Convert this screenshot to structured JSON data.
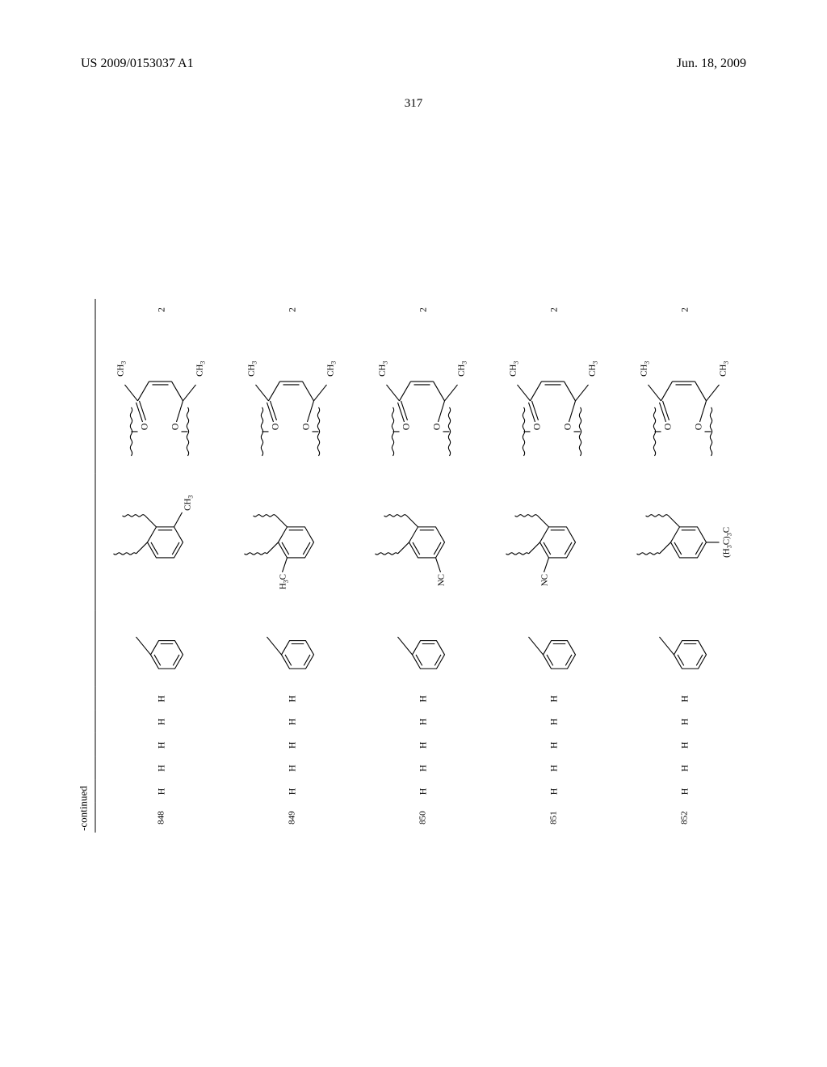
{
  "header": {
    "patent_number": "US 2009/0153037 A1",
    "date": "Jun. 18, 2009"
  },
  "page_number": "317",
  "continued_label": "-continued",
  "rows": [
    {
      "no": "848",
      "h": [
        "H",
        "H",
        "H",
        "H",
        "H"
      ],
      "struct2_sub": "CH3",
      "struct2_sub_pos": "ortho_right",
      "n": "2"
    },
    {
      "no": "849",
      "h": [
        "H",
        "H",
        "H",
        "H",
        "H"
      ],
      "struct2_sub": "H3C",
      "struct2_sub_pos": "ortho_left",
      "n": "2"
    },
    {
      "no": "850",
      "h": [
        "H",
        "H",
        "H",
        "H",
        "H"
      ],
      "struct2_sub": "NC",
      "struct2_sub_pos": "meta_left",
      "n": "2"
    },
    {
      "no": "851",
      "h": [
        "H",
        "H",
        "H",
        "H",
        "H"
      ],
      "struct2_sub": "NC",
      "struct2_sub_pos": "ortho_left",
      "n": "2"
    },
    {
      "no": "852",
      "h": [
        "H",
        "H",
        "H",
        "H",
        "H"
      ],
      "struct2_sub": "(H3C)3C",
      "struct2_sub_pos": "para",
      "n": "2"
    }
  ],
  "struct3_labels": {
    "ch3_top": "CH3",
    "ch3_bot": "CH3",
    "o": "O"
  },
  "style": {
    "stroke": "#000000",
    "stroke_width": 1.1,
    "font_family": "Times New Roman",
    "background": "#ffffff"
  }
}
